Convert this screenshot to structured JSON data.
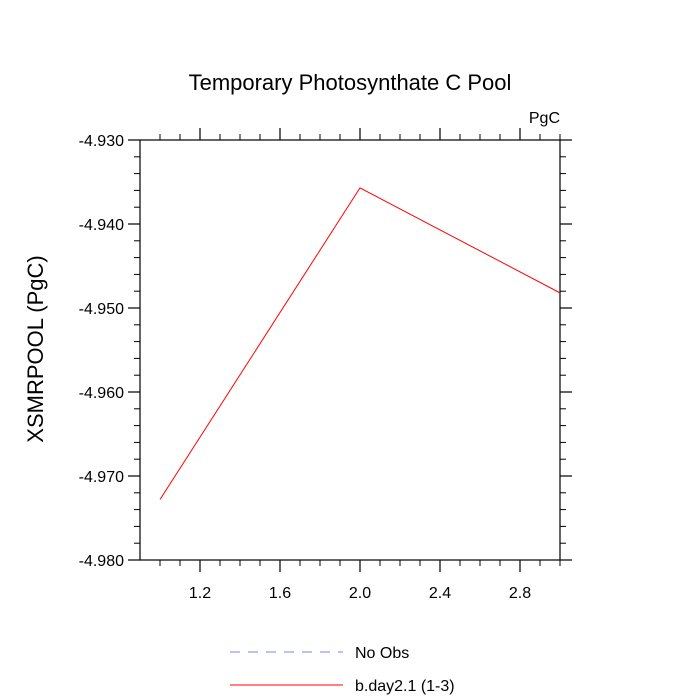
{
  "chart_data": {
    "type": "line",
    "title": "Temporary Photosynthate C Pool",
    "units_label": "PgC",
    "xlabel": "",
    "ylabel": "XSMRPOOL  (PgC)",
    "xlim": [
      0.9,
      3.0
    ],
    "ylim": [
      -4.98,
      -4.93
    ],
    "xticks": [
      1.2,
      1.6,
      2.0,
      2.4,
      2.8
    ],
    "xtick_labels": [
      "1.2",
      "1.6",
      "2.0",
      "2.4",
      "2.8"
    ],
    "yticks": [
      -4.98,
      -4.97,
      -4.96,
      -4.95,
      -4.94,
      -4.93
    ],
    "ytick_labels": [
      "-4.980",
      "-4.970",
      "-4.960",
      "-4.950",
      "-4.940",
      "-4.930"
    ],
    "grid": false,
    "legend_position": "bottom-center",
    "series": [
      {
        "name": "No Obs",
        "color": "#8080ff",
        "dashed": true,
        "x": [],
        "y": []
      },
      {
        "name": "b.day2.1 (1-3)",
        "color": "#ff0000",
        "dashed": false,
        "x": [
          1.0,
          2.0,
          3.0
        ],
        "y": [
          -4.9728,
          -4.9357,
          -4.9482
        ]
      }
    ]
  }
}
